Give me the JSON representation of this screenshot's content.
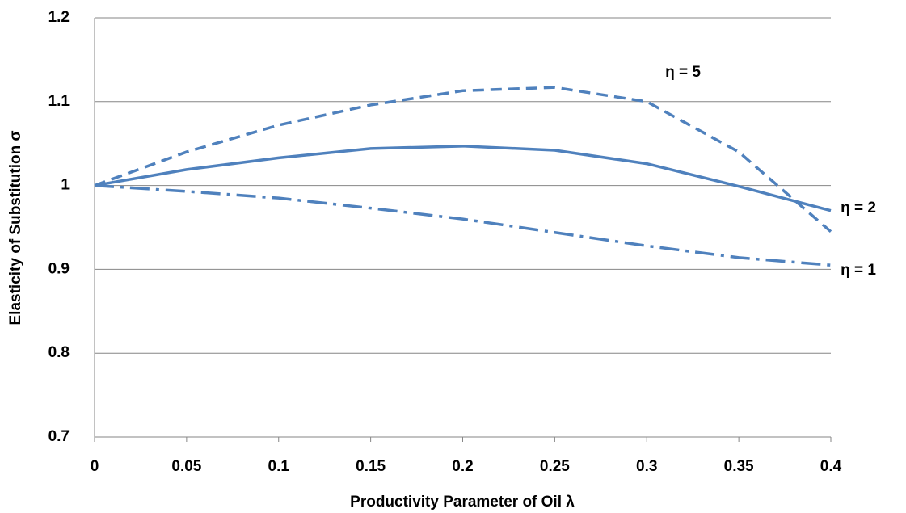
{
  "chart_data": {
    "type": "line",
    "x_label": "Productivity Parameter of Oil λ",
    "y_label": "Elasticity of Substitution σ",
    "x": [
      0,
      0.05,
      0.1,
      0.15,
      0.2,
      0.25,
      0.3,
      0.35,
      0.4
    ],
    "series": [
      {
        "name": "η = 5",
        "color": "#4f81bd",
        "style": "dashed",
        "values": [
          1,
          1.04,
          1.072,
          1.096,
          1.113,
          1.117,
          1.1,
          1.04,
          0.945
        ]
      },
      {
        "name": "η = 2",
        "color": "#4f81bd",
        "style": "solid",
        "values": [
          1,
          1.019,
          1.033,
          1.044,
          1.047,
          1.042,
          1.026,
          0.999,
          0.97
        ]
      },
      {
        "name": "η = 1",
        "color": "#4f81bd",
        "style": "dashdot",
        "values": [
          1,
          0.993,
          0.985,
          0.973,
          0.96,
          0.944,
          0.928,
          0.914,
          0.905
        ]
      }
    ],
    "xlim": [
      0,
      0.4
    ],
    "xticks": [
      0,
      0.05,
      0.1,
      0.15,
      0.2,
      0.25,
      0.3,
      0.35,
      0.4
    ],
    "ylim": [
      0.7,
      1.2
    ],
    "yticks": [
      0.7,
      0.8,
      0.9,
      1,
      1.1,
      1.2
    ],
    "grid": true
  }
}
